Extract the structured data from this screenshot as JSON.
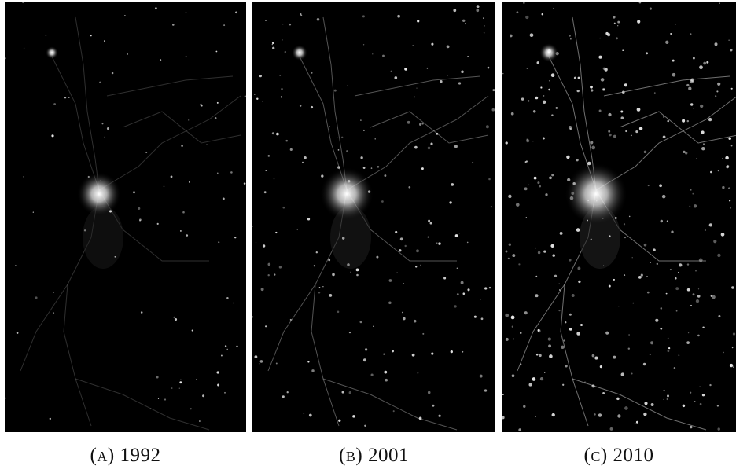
{
  "figure": {
    "panels": [
      {
        "caption": "(a) 1992"
      },
      {
        "caption": "(b) 2001"
      },
      {
        "caption": "(c) 2010"
      }
    ]
  }
}
